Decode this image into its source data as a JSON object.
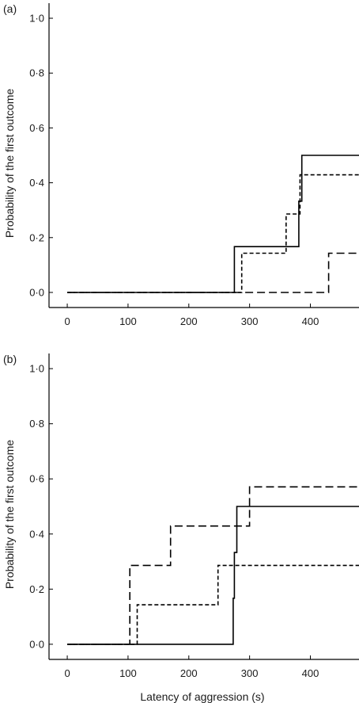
{
  "chart_data": [
    {
      "type": "line",
      "panel_label": "(a)",
      "xlabel": "",
      "ylabel": "Probability of the first outcome",
      "xlim": [
        -30,
        480
      ],
      "ylim": [
        -0.055,
        1.055
      ],
      "x_ticks": [
        0,
        100,
        200,
        300,
        400
      ],
      "x_tick_labels": [
        "0",
        "100",
        "200",
        "300",
        "400"
      ],
      "y_ticks": [
        0,
        0.2,
        0.4,
        0.6,
        0.8,
        1.0
      ],
      "y_tick_labels": [
        "0·0",
        "0·2",
        "0·4",
        "0·6",
        "0·8",
        "1·0"
      ],
      "step": true,
      "series": [
        {
          "style": "solid",
          "x": [
            0,
            275,
            381,
            386,
            480
          ],
          "y": [
            0,
            0.167,
            0.333,
            0.5,
            0.5
          ]
        },
        {
          "style": "dotted",
          "x": [
            0,
            287,
            360,
            378,
            383,
            480
          ],
          "y": [
            0,
            0.143,
            0.286,
            0.286,
            0.429,
            0.429
          ]
        },
        {
          "style": "dashed",
          "x": [
            0,
            430,
            480
          ],
          "y": [
            0,
            0.143,
            0.143
          ]
        }
      ]
    },
    {
      "type": "line",
      "panel_label": "(b)",
      "xlabel": "Latency of aggression (s)",
      "ylabel": "Probability of the first outcome",
      "xlim": [
        -30,
        480
      ],
      "ylim": [
        -0.055,
        1.055
      ],
      "x_ticks": [
        0,
        100,
        200,
        300,
        400
      ],
      "x_tick_labels": [
        "0",
        "100",
        "200",
        "300",
        "400"
      ],
      "y_ticks": [
        0,
        0.2,
        0.4,
        0.6,
        0.8,
        1.0
      ],
      "y_tick_labels": [
        "0·0",
        "0·2",
        "0·4",
        "0·6",
        "0·8",
        "1·0"
      ],
      "step": true,
      "series": [
        {
          "style": "solid",
          "x": [
            0,
            273,
            275,
            279,
            480
          ],
          "y": [
            0,
            0.167,
            0.333,
            0.5,
            0.5
          ]
        },
        {
          "style": "dotted",
          "x": [
            0,
            115,
            248,
            480
          ],
          "y": [
            0,
            0.143,
            0.286,
            0.286
          ]
        },
        {
          "style": "dashed",
          "x": [
            0,
            103,
            170,
            300,
            480
          ],
          "y": [
            0,
            0.286,
            0.429,
            0.571,
            0.571
          ]
        }
      ]
    }
  ]
}
